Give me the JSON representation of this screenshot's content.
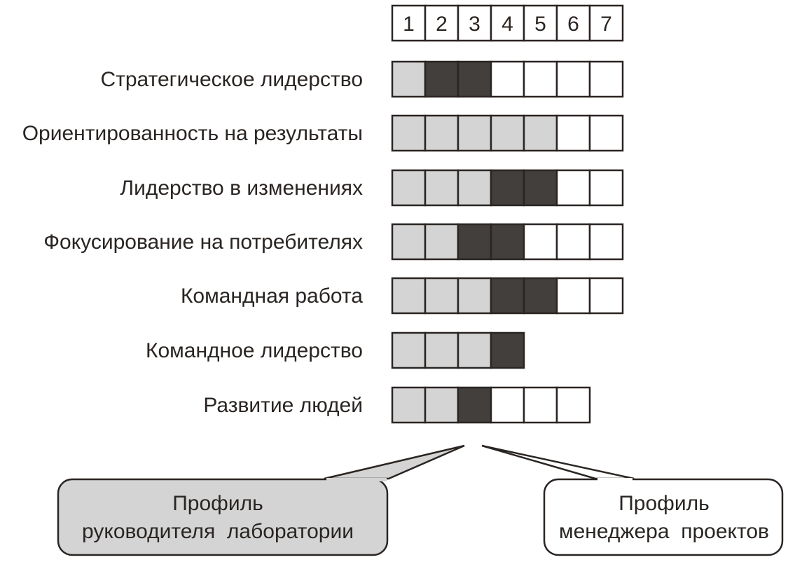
{
  "header": {
    "levels": [
      "1",
      "2",
      "3",
      "4",
      "5",
      "6",
      "7"
    ]
  },
  "competencies": [
    {
      "label": "Стратегическое лидерство",
      "lab_level": 1,
      "manager_level": 3,
      "scale_max": 7
    },
    {
      "label": "Ориентированность на результаты",
      "lab_level": 5,
      "manager_level": 5,
      "scale_max": 7
    },
    {
      "label": "Лидерство в изменениях",
      "lab_level": 3,
      "manager_level": 5,
      "scale_max": 7
    },
    {
      "label": "Фокусирование на потребителях",
      "lab_level": 2,
      "manager_level": 4,
      "scale_max": 7
    },
    {
      "label": "Командная работа",
      "lab_level": 3,
      "manager_level": 5,
      "scale_max": 7
    },
    {
      "label": "Командное лидерство",
      "lab_level": 3,
      "manager_level": 4,
      "scale_max": 4
    },
    {
      "label": "Развитие людей",
      "lab_level": 2,
      "manager_level": 3,
      "scale_max": 6
    }
  ],
  "legend": {
    "lab_profile": {
      "line1": "Профиль",
      "line2": "руководителя  лаборатории"
    },
    "manager_profile": {
      "line1": "Профиль",
      "line2": "менеджера  проектов"
    }
  },
  "colors": {
    "lab_fill": "#d4d4d4",
    "manager_fill": "#423f3c",
    "empty_fill": "#ffffff",
    "stroke": "#2a2522",
    "text": "#2a2522"
  }
}
